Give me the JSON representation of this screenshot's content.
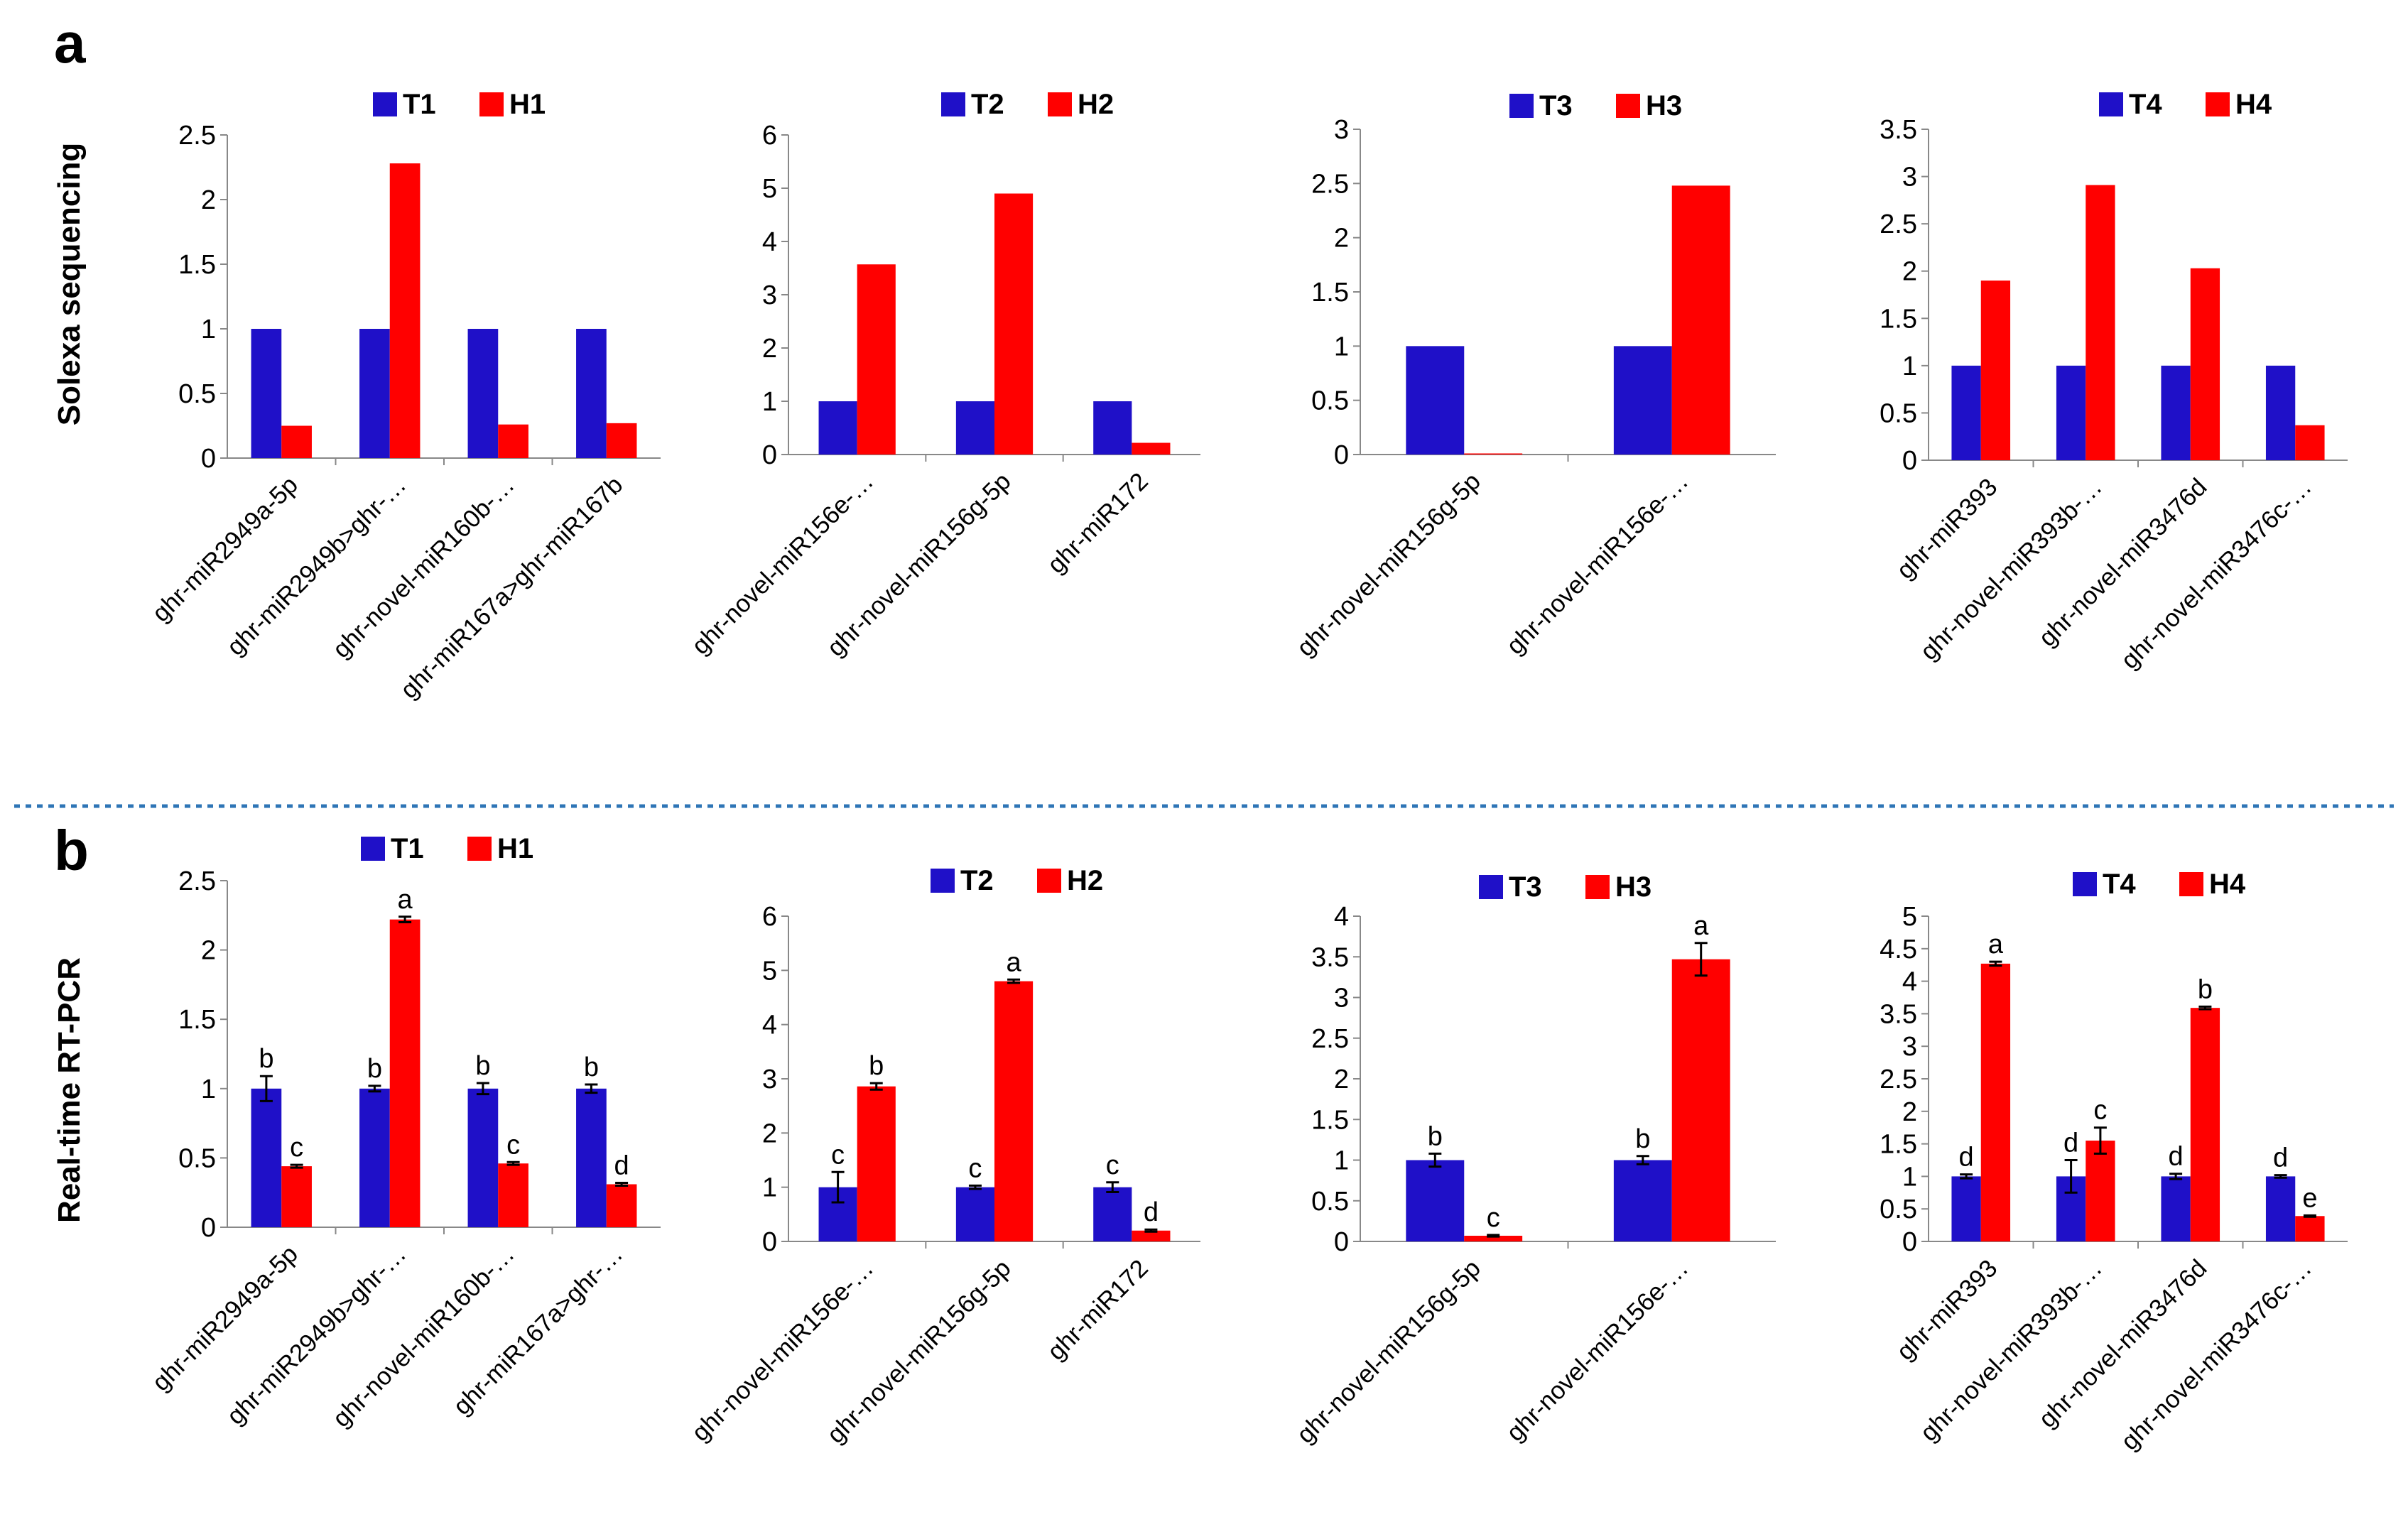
{
  "panel_labels": {
    "a": "a",
    "b": "b"
  },
  "row_ylabels": {
    "a": "Solexa sequencing",
    "b": "Real-time RT-PCR"
  },
  "colors": {
    "T": "#1f10c8",
    "H": "#ff0000",
    "divider": "#2e75b6"
  },
  "chart_data": [
    {
      "type": "bar",
      "panel": "a",
      "ylim": [
        0,
        2.5
      ],
      "yticks": [
        "0",
        "0.5",
        "1",
        "1.5",
        "2",
        "2.5"
      ],
      "categories": [
        "ghr-miR2949a-5p",
        "ghr-miR2949b>ghr-…",
        "ghr-novel-miR160b-…",
        "ghr-miR167a>ghr-miR167b"
      ],
      "series": [
        {
          "name": "T1",
          "values": [
            1,
            1,
            1,
            1
          ]
        },
        {
          "name": "H1",
          "values": [
            0.25,
            2.28,
            0.26,
            0.27
          ]
        }
      ]
    },
    {
      "type": "bar",
      "panel": "a",
      "ylim": [
        0,
        6
      ],
      "yticks": [
        "0",
        "1",
        "2",
        "3",
        "4",
        "5",
        "6"
      ],
      "categories": [
        "ghr-novel-miR156e-…",
        "ghr-novel-miR156g-5p",
        "ghr-miR172"
      ],
      "series": [
        {
          "name": "T2",
          "values": [
            1,
            1,
            1
          ]
        },
        {
          "name": "H2",
          "values": [
            3.57,
            4.9,
            0.22
          ]
        }
      ]
    },
    {
      "type": "bar",
      "panel": "a",
      "ylim": [
        0,
        3
      ],
      "yticks": [
        "0",
        "0.5",
        "1",
        "1.5",
        "2",
        "2.5",
        "3"
      ],
      "categories": [
        "ghr-novel-miR156g-5p",
        "ghr-novel-miR156e-…"
      ],
      "series": [
        {
          "name": "T3",
          "values": [
            1,
            1
          ]
        },
        {
          "name": "H3",
          "values": [
            0.01,
            2.48
          ]
        }
      ]
    },
    {
      "type": "bar",
      "panel": "a",
      "ylim": [
        0,
        3.5
      ],
      "yticks": [
        "0",
        "0.5",
        "1",
        "1.5",
        "2",
        "2.5",
        "3",
        "3.5"
      ],
      "categories": [
        "ghr-miR393",
        "ghr-novel-miR393b-…",
        "ghr-novel-miR3476d",
        "ghr-novel-miR3476c-…"
      ],
      "series": [
        {
          "name": "T4",
          "values": [
            1,
            1,
            1,
            1
          ]
        },
        {
          "name": "H4",
          "values": [
            1.9,
            2.91,
            2.03,
            0.37
          ]
        }
      ]
    },
    {
      "type": "bar",
      "panel": "b",
      "ylim": [
        0,
        2.5
      ],
      "yticks": [
        "0",
        "0.5",
        "1",
        "1.5",
        "2",
        "2.5"
      ],
      "categories": [
        "ghr-miR2949a-5p",
        "ghr-miR2949b>ghr-…",
        "ghr-novel-miR160b-…",
        "ghr-miR167a>ghr-…"
      ],
      "series": [
        {
          "name": "T1",
          "values": [
            1,
            1,
            1,
            1
          ],
          "errors": [
            0.09,
            0.02,
            0.04,
            0.03
          ],
          "letters": [
            "b",
            "b",
            "b",
            "b"
          ]
        },
        {
          "name": "H1",
          "values": [
            0.44,
            2.22,
            0.46,
            0.31
          ],
          "errors": [
            0.01,
            0.02,
            0.01,
            0.01
          ],
          "letters": [
            "c",
            "a",
            "c",
            "d"
          ]
        }
      ]
    },
    {
      "type": "bar",
      "panel": "b",
      "ylim": [
        0,
        6
      ],
      "yticks": [
        "0",
        "1",
        "2",
        "3",
        "4",
        "5",
        "6"
      ],
      "categories": [
        "ghr-novel-miR156e-…",
        "ghr-novel-miR156g-5p",
        "ghr-miR172"
      ],
      "series": [
        {
          "name": "T2",
          "values": [
            1,
            1,
            1
          ],
          "errors": [
            0.28,
            0.03,
            0.09
          ],
          "letters": [
            "c",
            "c",
            "c"
          ]
        },
        {
          "name": "H2",
          "values": [
            2.86,
            4.8,
            0.2
          ],
          "errors": [
            0.06,
            0.03,
            0.02
          ],
          "letters": [
            "b",
            "a",
            "d"
          ]
        }
      ]
    },
    {
      "type": "bar",
      "panel": "b",
      "ylim": [
        0,
        4
      ],
      "yticks": [
        "0",
        "0.5",
        "1",
        "1.5",
        "2",
        "2.5",
        "3",
        "3.5",
        "4"
      ],
      "categories": [
        "ghr-novel-miR156g-5p",
        "ghr-novel-miR156e-…"
      ],
      "series": [
        {
          "name": "T3",
          "values": [
            1,
            1
          ],
          "errors": [
            0.08,
            0.05
          ],
          "letters": [
            "b",
            "b"
          ]
        },
        {
          "name": "H3",
          "values": [
            0.07,
            3.47
          ],
          "errors": [
            0.01,
            0.2
          ],
          "letters": [
            "c",
            "a"
          ]
        }
      ]
    },
    {
      "type": "bar",
      "panel": "b",
      "ylim": [
        0,
        5
      ],
      "yticks": [
        "0",
        "0.5",
        "1",
        "1.5",
        "2",
        "2.5",
        "3",
        "3.5",
        "4",
        "4.5",
        "5"
      ],
      "categories": [
        "ghr-miR393",
        "ghr-novel-miR393b-…",
        "ghr-novel-miR3476d",
        "ghr-novel-miR3476c-…"
      ],
      "series": [
        {
          "name": "T4",
          "values": [
            1,
            1,
            1,
            1
          ],
          "errors": [
            0.03,
            0.25,
            0.04,
            0.02
          ],
          "letters": [
            "d",
            "d",
            "d",
            "d"
          ]
        },
        {
          "name": "H4",
          "values": [
            4.27,
            1.55,
            3.59,
            0.39
          ],
          "errors": [
            0.03,
            0.2,
            0.02,
            0.01
          ],
          "letters": [
            "a",
            "c",
            "b",
            "e"
          ]
        }
      ]
    }
  ]
}
